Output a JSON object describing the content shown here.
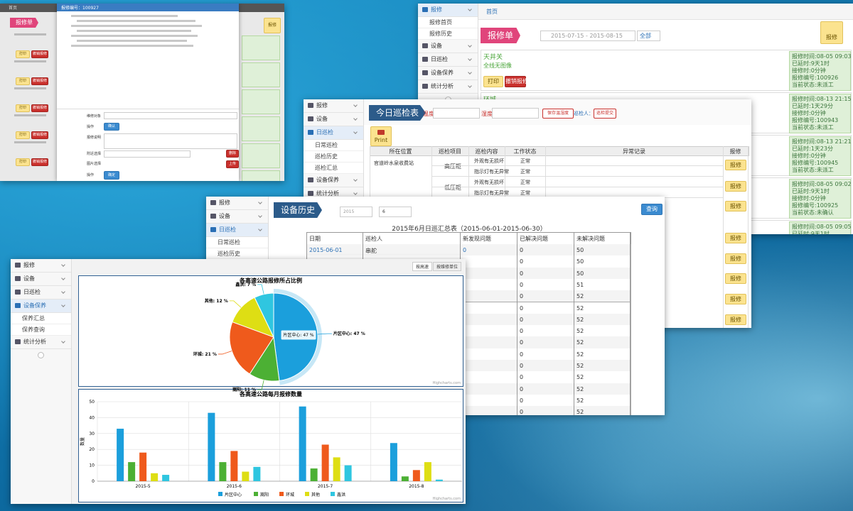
{
  "window1": {
    "breadcrumb": "首页",
    "tab": "报修单",
    "add_button": "报修",
    "dialog_title": "报修编号：100927",
    "buttons": [
      "打印",
      "撤销报修"
    ],
    "form_labels": [
      "维修对象",
      "操作",
      "报修说明",
      "附近选择",
      "图片选择",
      "操作"
    ],
    "form_buttons": [
      "确认",
      "删除",
      "上传",
      "确定"
    ]
  },
  "window2": {
    "menu": [
      {
        "label": "报修",
        "items": [
          "报修首页",
          "报修历史"
        ]
      },
      {
        "label": "设备"
      },
      {
        "label": "日巡检"
      },
      {
        "label": "设备保养"
      },
      {
        "label": "统计分析"
      }
    ],
    "breadcrumb": "首页",
    "tab": "报修单",
    "date_range": "2015-07-15 - 2015-08-15",
    "filter": "全部",
    "add_button": "报修",
    "info_labels": [
      "报修时间:",
      "已延时:",
      "接修时:",
      "报修编号:",
      "当前状态:"
    ],
    "tickets": [
      {
        "title": "天井关",
        "description": "全线无图像",
        "buttons": [
          "打印",
          "撤销报修"
        ],
        "info": [
          "08-05 09:03",
          "9天1时",
          "0分钟",
          "100926",
          "未派工"
        ]
      },
      {
        "title": "环城",
        "info": [
          "08-13 21:15",
          "1天29分",
          "0分钟",
          "100943",
          "未派工"
        ]
      },
      {
        "info": [
          "08-13 21:21",
          "1天23分",
          "0分钟",
          "100945",
          "未派工"
        ]
      },
      {
        "info": [
          "08-05 09:02",
          "9天1时",
          "0分钟",
          "100925",
          "未确认"
        ]
      },
      {
        "info": [
          "08-05 09:05",
          "9天1时"
        ]
      }
    ]
  },
  "window3": {
    "menu": [
      {
        "label": "报修"
      },
      {
        "label": "设备"
      },
      {
        "label": "日巡检",
        "items": [
          "日常巡检",
          "巡检历史",
          "巡检汇总"
        ]
      },
      {
        "label": "设备保养"
      },
      {
        "label": "统计分析"
      }
    ],
    "tab": "今日巡检表",
    "temperature_label": "温度",
    "humidity_label": "湿度",
    "save_button": "保存温湿度",
    "inspector": "巡检人：无",
    "submit_button": "巡检提交",
    "print_button": "Print",
    "table": {
      "header": [
        "所在位置",
        "巡检项目",
        "巡检内容",
        "工作状态",
        "异常记录",
        "报修"
      ],
      "location": "官道岭水泉收费站",
      "groups": [
        {
          "item": "高压柜",
          "checks": [
            [
              "外观有无损坏",
              "正常"
            ],
            [
              "指示灯有无异常",
              "正常"
            ]
          ]
        },
        {
          "item": "低压柜",
          "checks": [
            [
              "外观有无损坏",
              "正常"
            ],
            [
              "指示灯有无异常",
              "正常"
            ]
          ]
        }
      ]
    },
    "report_button": "报修"
  },
  "window4": {
    "menu": [
      {
        "label": "报修"
      },
      {
        "label": "设备"
      },
      {
        "label": "日巡检",
        "items": [
          "日常巡检",
          "巡检历史",
          "巡检汇总"
        ]
      }
    ],
    "tab": "设备历史",
    "year": "2015",
    "month": "6",
    "query_button": "查询",
    "title": "2015年6月日巡汇总表（2015-06-01-2015-06-30）",
    "table": {
      "header": [
        "日期",
        "巡检人",
        "新发现问题",
        "已解决问题",
        "未解决问题"
      ],
      "rows": [
        [
          "2015-06-01",
          "串舵",
          "0",
          "0",
          "50"
        ],
        [
          "0",
          "50"
        ],
        [
          "0",
          "50"
        ],
        [
          "0",
          "51"
        ],
        [
          "0",
          "52"
        ],
        [
          "0",
          "52"
        ],
        [
          "0",
          "52"
        ],
        [
          "0",
          "52"
        ],
        [
          "0",
          "52"
        ],
        [
          "0",
          "52"
        ],
        [
          "0",
          "52"
        ],
        [
          "0",
          "52"
        ],
        [
          "0",
          "52"
        ],
        [
          "0",
          "52"
        ],
        [
          "0",
          "52"
        ]
      ]
    }
  },
  "window5": {
    "menu": [
      {
        "label": "报修"
      },
      {
        "label": "设备"
      },
      {
        "label": "日巡检"
      },
      {
        "label": "设备保养",
        "items": [
          "保养汇总",
          "保养查询"
        ]
      },
      {
        "label": "统计分析"
      }
    ],
    "tabs": [
      "按高速",
      "按维修单位"
    ]
  },
  "chart_data": [
    {
      "type": "pie",
      "title": "各高速公路报修所占比例",
      "categories": [
        "片区中心",
        "嵩阳",
        "环城",
        "其他",
        "鑫洪"
      ],
      "values": [
        47,
        11,
        21,
        12,
        7
      ],
      "value_labels": [
        "片区中心: 47 %",
        "嵩阳: 11 %",
        "环城: 21 %",
        "其他: 12 %",
        "鑫洪: 7 %"
      ],
      "colors": [
        "#1b9fdc",
        "#4cb034",
        "#ef5a1c",
        "#dede14",
        "#2fc6e0"
      ],
      "credits": "Highcharts.com"
    },
    {
      "type": "bar",
      "title": "各高速公路每月报修数量",
      "y_label": "数量",
      "categories": [
        "2015-5",
        "2015-6",
        "2015-7",
        "2015-8"
      ],
      "series": [
        {
          "name": "片区中心",
          "color": "#1b9fdc",
          "values": [
            33,
            43,
            47,
            24
          ]
        },
        {
          "name": "嵩阳",
          "color": "#4cb034",
          "values": [
            12,
            12,
            8,
            3
          ]
        },
        {
          "name": "环城",
          "color": "#ef5a1c",
          "values": [
            18,
            19,
            23,
            7
          ]
        },
        {
          "name": "其他",
          "color": "#dede14",
          "values": [
            5,
            6,
            15,
            12
          ]
        },
        {
          "name": "鑫洪",
          "color": "#2fc6e0",
          "values": [
            4,
            9,
            10,
            1
          ]
        }
      ],
      "ylim": [
        0,
        50
      ],
      "yticks": [
        0,
        10,
        20,
        30,
        40,
        50
      ],
      "grid": true,
      "credits": "Highcharts.com"
    }
  ]
}
